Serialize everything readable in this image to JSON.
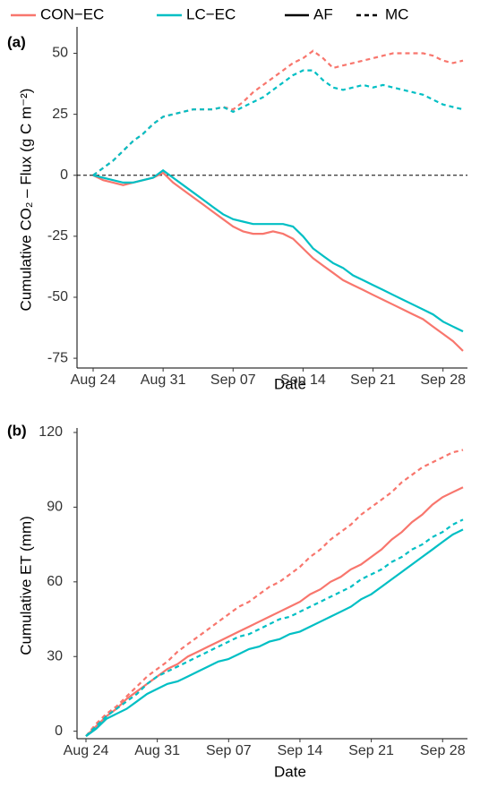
{
  "legend": {
    "colors": [
      {
        "name": "CON−EC",
        "color": "#f8766d"
      },
      {
        "name": "LC−EC",
        "color": "#00bfc4"
      }
    ],
    "linetypes": [
      {
        "name": "AF",
        "dash": "solid"
      },
      {
        "name": "MC",
        "dash": "dashed"
      }
    ]
  },
  "chart_data": [
    {
      "type": "line",
      "panel_label": "(a)",
      "y_label": "Cumulative CO₂ – Flux (g C m⁻²)",
      "x_label": "Date",
      "x": [
        "Aug 24",
        "Aug 25",
        "Aug 26",
        "Aug 27",
        "Aug 28",
        "Aug 29",
        "Aug 30",
        "Aug 31",
        "Sep 01",
        "Sep 02",
        "Sep 03",
        "Sep 04",
        "Sep 05",
        "Sep 06",
        "Sep 07",
        "Sep 08",
        "Sep 09",
        "Sep 10",
        "Sep 11",
        "Sep 12",
        "Sep 13",
        "Sep 14",
        "Sep 15",
        "Sep 16",
        "Sep 17",
        "Sep 18",
        "Sep 19",
        "Sep 20",
        "Sep 21",
        "Sep 22",
        "Sep 23",
        "Sep 24",
        "Sep 25",
        "Sep 26",
        "Sep 27",
        "Sep 28",
        "Sep 29",
        "Sep 30"
      ],
      "xticks": [
        "Aug 24",
        "Aug 31",
        "Sep 07",
        "Sep 14",
        "Sep 21",
        "Sep 28"
      ],
      "ylim": [
        -79,
        59
      ],
      "yticks": [
        -75,
        -50,
        -25,
        0,
        25,
        50
      ],
      "hline": 0,
      "series": [
        {
          "color": "#f8766d",
          "dash": "dashed",
          "values": [
            0,
            3,
            6,
            10,
            14,
            17,
            21,
            24,
            25,
            26,
            27,
            27,
            27,
            28,
            27,
            30,
            34,
            37,
            40,
            43,
            46,
            48,
            51,
            48,
            44,
            45,
            46,
            47,
            48,
            49,
            50,
            50,
            50,
            50,
            49,
            47,
            46,
            47
          ]
        },
        {
          "color": "#00bfc4",
          "dash": "dashed",
          "values": [
            0,
            3,
            6,
            10,
            14,
            17,
            21,
            24,
            25,
            26,
            27,
            27,
            27,
            28,
            26,
            28,
            30,
            32,
            35,
            38,
            41,
            43,
            43,
            39,
            36,
            35,
            36,
            37,
            36,
            37,
            36,
            35,
            34,
            33,
            31,
            29,
            28,
            27
          ]
        },
        {
          "color": "#f8766d",
          "dash": "solid",
          "values": [
            0,
            -2,
            -3,
            -4,
            -3,
            -2,
            -1,
            1,
            -3,
            -6,
            -9,
            -12,
            -15,
            -18,
            -21,
            -23,
            -24,
            -24,
            -23,
            -24,
            -26,
            -30,
            -34,
            -37,
            -40,
            -43,
            -45,
            -47,
            -49,
            -51,
            -53,
            -55,
            -57,
            -59,
            -62,
            -65,
            -68,
            -72
          ]
        },
        {
          "color": "#00bfc4",
          "dash": "solid",
          "values": [
            0,
            -1,
            -2,
            -3,
            -3,
            -2,
            -1,
            2,
            -1,
            -4,
            -7,
            -10,
            -13,
            -16,
            -18,
            -19,
            -20,
            -20,
            -20,
            -20,
            -21,
            -25,
            -30,
            -33,
            -36,
            -38,
            -41,
            -43,
            -45,
            -47,
            -49,
            -51,
            -53,
            -55,
            -57,
            -60,
            -62,
            -64
          ]
        }
      ]
    },
    {
      "type": "line",
      "panel_label": "(b)",
      "y_label": "Cumulative ET (mm)",
      "x_label": "Date",
      "x": [
        "Aug 24",
        "Aug 25",
        "Aug 26",
        "Aug 27",
        "Aug 28",
        "Aug 29",
        "Aug 30",
        "Aug 31",
        "Sep 01",
        "Sep 02",
        "Sep 03",
        "Sep 04",
        "Sep 05",
        "Sep 06",
        "Sep 07",
        "Sep 08",
        "Sep 09",
        "Sep 10",
        "Sep 11",
        "Sep 12",
        "Sep 13",
        "Sep 14",
        "Sep 15",
        "Sep 16",
        "Sep 17",
        "Sep 18",
        "Sep 19",
        "Sep 20",
        "Sep 21",
        "Sep 22",
        "Sep 23",
        "Sep 24",
        "Sep 25",
        "Sep 26",
        "Sep 27",
        "Sep 28",
        "Sep 29",
        "Sep 30"
      ],
      "xticks": [
        "Aug 24",
        "Aug 31",
        "Sep 07",
        "Sep 14",
        "Sep 21",
        "Sep 28"
      ],
      "ylim": [
        -3,
        120
      ],
      "yticks": [
        0,
        30,
        60,
        90,
        120
      ],
      "series": [
        {
          "color": "#f8766d",
          "dash": "dashed",
          "values": [
            -2,
            3,
            7,
            10,
            14,
            18,
            22,
            25,
            28,
            32,
            35,
            38,
            41,
            44,
            47,
            50,
            52,
            55,
            58,
            60,
            63,
            66,
            70,
            73,
            77,
            80,
            83,
            87,
            90,
            93,
            96,
            100,
            103,
            106,
            108,
            110,
            112,
            113
          ]
        },
        {
          "color": "#f8766d",
          "dash": "solid",
          "values": [
            -2,
            2,
            6,
            9,
            13,
            16,
            19,
            22,
            25,
            27,
            30,
            32,
            34,
            36,
            38,
            40,
            42,
            44,
            46,
            48,
            50,
            52,
            55,
            57,
            60,
            62,
            65,
            67,
            70,
            73,
            77,
            80,
            84,
            87,
            91,
            94,
            96,
            98
          ]
        },
        {
          "color": "#00bfc4",
          "dash": "dashed",
          "values": [
            -2,
            2,
            6,
            9,
            12,
            15,
            19,
            22,
            24,
            26,
            28,
            30,
            32,
            34,
            36,
            38,
            39,
            41,
            43,
            45,
            46,
            48,
            50,
            52,
            54,
            56,
            58,
            61,
            63,
            65,
            68,
            70,
            73,
            75,
            78,
            80,
            83,
            85
          ]
        },
        {
          "color": "#00bfc4",
          "dash": "solid",
          "values": [
            -2,
            1,
            5,
            7,
            9,
            12,
            15,
            17,
            19,
            20,
            22,
            24,
            26,
            28,
            29,
            31,
            33,
            34,
            36,
            37,
            39,
            40,
            42,
            44,
            46,
            48,
            50,
            53,
            55,
            58,
            61,
            64,
            67,
            70,
            73,
            76,
            79,
            81
          ]
        }
      ]
    }
  ]
}
